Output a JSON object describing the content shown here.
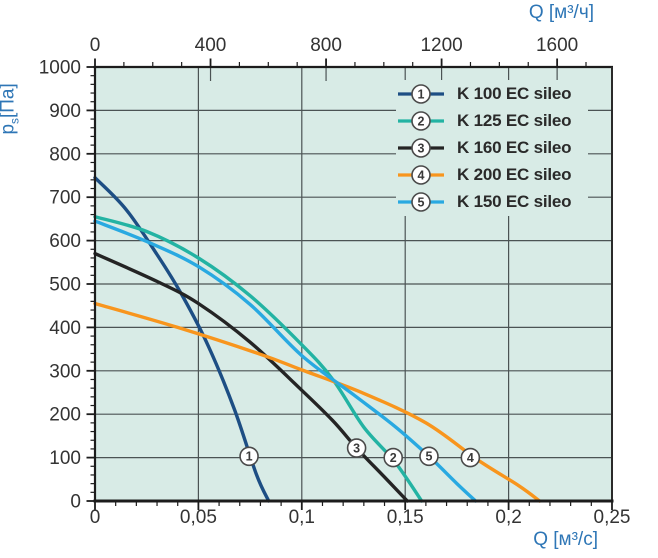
{
  "chart_data": {
    "type": "line",
    "title": "",
    "grid": true,
    "plot_background": "#d8ebe6",
    "grid_color": "#4b5354",
    "axis_color": "#1c1c1c",
    "tick_label_color": "#333333",
    "unit_label_color": "#2e76b6",
    "marker_style": {
      "fill": "#ffffff",
      "stroke": "#4a4a4a",
      "number_color": "#3a3a3a"
    },
    "axes": {
      "y": {
        "label_main": "p",
        "label_sub": "s",
        "label_unit": "[Па]",
        "min": 0,
        "max": 1000,
        "major_step": 100,
        "minor_step": 20,
        "ticks": [
          {
            "v": 0,
            "l": "0"
          },
          {
            "v": 100,
            "l": "100"
          },
          {
            "v": 200,
            "l": "200"
          },
          {
            "v": 300,
            "l": "300"
          },
          {
            "v": 400,
            "l": "400"
          },
          {
            "v": 500,
            "l": "500"
          },
          {
            "v": 600,
            "l": "600"
          },
          {
            "v": 700,
            "l": "700"
          },
          {
            "v": 800,
            "l": "800"
          },
          {
            "v": 900,
            "l": "900"
          },
          {
            "v": 1000,
            "l": "1000"
          }
        ]
      },
      "x_bottom": {
        "label": "Q [м³/с]",
        "min": 0,
        "max": 0.25,
        "minor_step": 0.01,
        "ticks": [
          {
            "v": 0,
            "l": "0"
          },
          {
            "v": 0.05,
            "l": "0,05"
          },
          {
            "v": 0.1,
            "l": "0,1"
          },
          {
            "v": 0.15,
            "l": "0,15"
          },
          {
            "v": 0.2,
            "l": "0,2"
          },
          {
            "v": 0.25,
            "l": "0,25"
          }
        ]
      },
      "x_top": {
        "label": "Q [м³/ч]",
        "min": 0,
        "max": 1790,
        "minor_step": 100,
        "ticks": [
          {
            "v": 0,
            "l": "0"
          },
          {
            "v": 400,
            "l": "400"
          },
          {
            "v": 800,
            "l": "800"
          },
          {
            "v": 1200,
            "l": "1200"
          },
          {
            "v": 1600,
            "l": "1600"
          }
        ]
      }
    },
    "series": [
      {
        "num": "1",
        "name": "K 100 EC sileo",
        "color": "#1d4e84",
        "points": [
          [
            0,
            745
          ],
          [
            0.015,
            672
          ],
          [
            0.03,
            568
          ],
          [
            0.0426,
            470
          ],
          [
            0.055,
            355
          ],
          [
            0.0675,
            210
          ],
          [
            0.078,
            62
          ],
          [
            0.084,
            0
          ]
        ],
        "marker": {
          "q": 0.0745,
          "p": 103
        }
      },
      {
        "num": "2",
        "name": "K 125 EC sileo",
        "color": "#23b3a3",
        "points": [
          [
            0,
            655
          ],
          [
            0.025,
            621
          ],
          [
            0.05,
            560
          ],
          [
            0.075,
            473
          ],
          [
            0.1,
            360
          ],
          [
            0.115,
            280
          ],
          [
            0.13,
            170
          ],
          [
            0.145,
            90
          ],
          [
            0.158,
            0
          ]
        ],
        "marker": {
          "q": 0.1442,
          "p": 100
        }
      },
      {
        "num": "3",
        "name": "K 160 EC sileo",
        "color": "#242424",
        "points": [
          [
            0,
            570
          ],
          [
            0.03,
            506
          ],
          [
            0.05,
            455
          ],
          [
            0.075,
            366
          ],
          [
            0.1,
            255
          ],
          [
            0.115,
            185
          ],
          [
            0.1265,
            122
          ],
          [
            0.14,
            55
          ],
          [
            0.151,
            0
          ]
        ],
        "marker": {
          "q": 0.1265,
          "p": 122
        }
      },
      {
        "num": "4",
        "name": "K 200 EC sileo",
        "color": "#f8951d",
        "points": [
          [
            0,
            455
          ],
          [
            0.04,
            400
          ],
          [
            0.08,
            338
          ],
          [
            0.1,
            302
          ],
          [
            0.13,
            248
          ],
          [
            0.16,
            180
          ],
          [
            0.185,
            95
          ],
          [
            0.205,
            35
          ],
          [
            0.215,
            0
          ]
        ],
        "marker": {
          "q": 0.1815,
          "p": 100
        }
      },
      {
        "num": "5",
        "name": "K 150 EC sileo",
        "color": "#29a9e1",
        "points": [
          [
            0,
            645
          ],
          [
            0.025,
            598
          ],
          [
            0.05,
            540
          ],
          [
            0.075,
            453
          ],
          [
            0.1,
            335
          ],
          [
            0.125,
            245
          ],
          [
            0.145,
            172
          ],
          [
            0.1615,
            103
          ],
          [
            0.175,
            40
          ],
          [
            0.184,
            0
          ]
        ],
        "marker": {
          "q": 0.1615,
          "p": 103
        }
      }
    ],
    "legend_position": "top-right-inside"
  }
}
